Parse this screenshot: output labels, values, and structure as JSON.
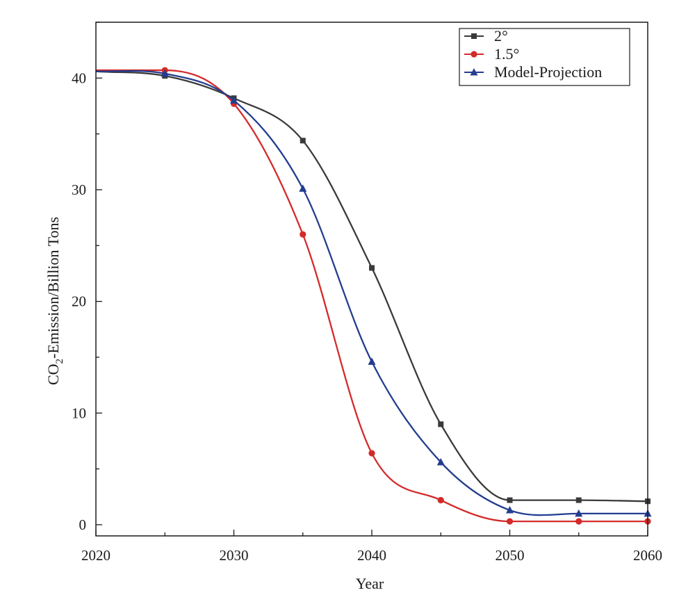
{
  "chart_data": {
    "type": "line",
    "xlabel": "Year",
    "ylabel": {
      "prefix": "CO",
      "subscript": "2",
      "suffix": "-Emission/Billion Tons"
    },
    "xlim": [
      2020,
      2060
    ],
    "ylim": [
      -1,
      45
    ],
    "xticks": [
      2020,
      2030,
      2040,
      2050,
      2060
    ],
    "yticks": [
      0,
      10,
      20,
      30,
      40
    ],
    "grid": false,
    "legend_position": "top-right",
    "series": [
      {
        "name": "2°",
        "marker": "square",
        "color": "#3a3a3a",
        "x": [
          2020,
          2025,
          2030,
          2035,
          2040,
          2045,
          2050,
          2055,
          2060
        ],
        "y": [
          40.6,
          40.2,
          38.2,
          34.4,
          23.0,
          9.0,
          2.2,
          2.2,
          2.1
        ]
      },
      {
        "name": "1.5°",
        "marker": "circle",
        "color": "#d42a2a",
        "x": [
          2020,
          2025,
          2030,
          2035,
          2040,
          2045,
          2050,
          2055,
          2060
        ],
        "y": [
          40.7,
          40.7,
          37.7,
          26.0,
          6.4,
          2.2,
          0.3,
          0.3,
          0.3
        ]
      },
      {
        "name": "Model-Projection",
        "marker": "triangle",
        "color": "#233d8f",
        "x": [
          2020,
          2025,
          2030,
          2035,
          2040,
          2045,
          2050,
          2055,
          2060
        ],
        "y": [
          40.6,
          40.4,
          38.0,
          30.1,
          14.6,
          5.6,
          1.3,
          1.0,
          1.0
        ]
      }
    ]
  }
}
